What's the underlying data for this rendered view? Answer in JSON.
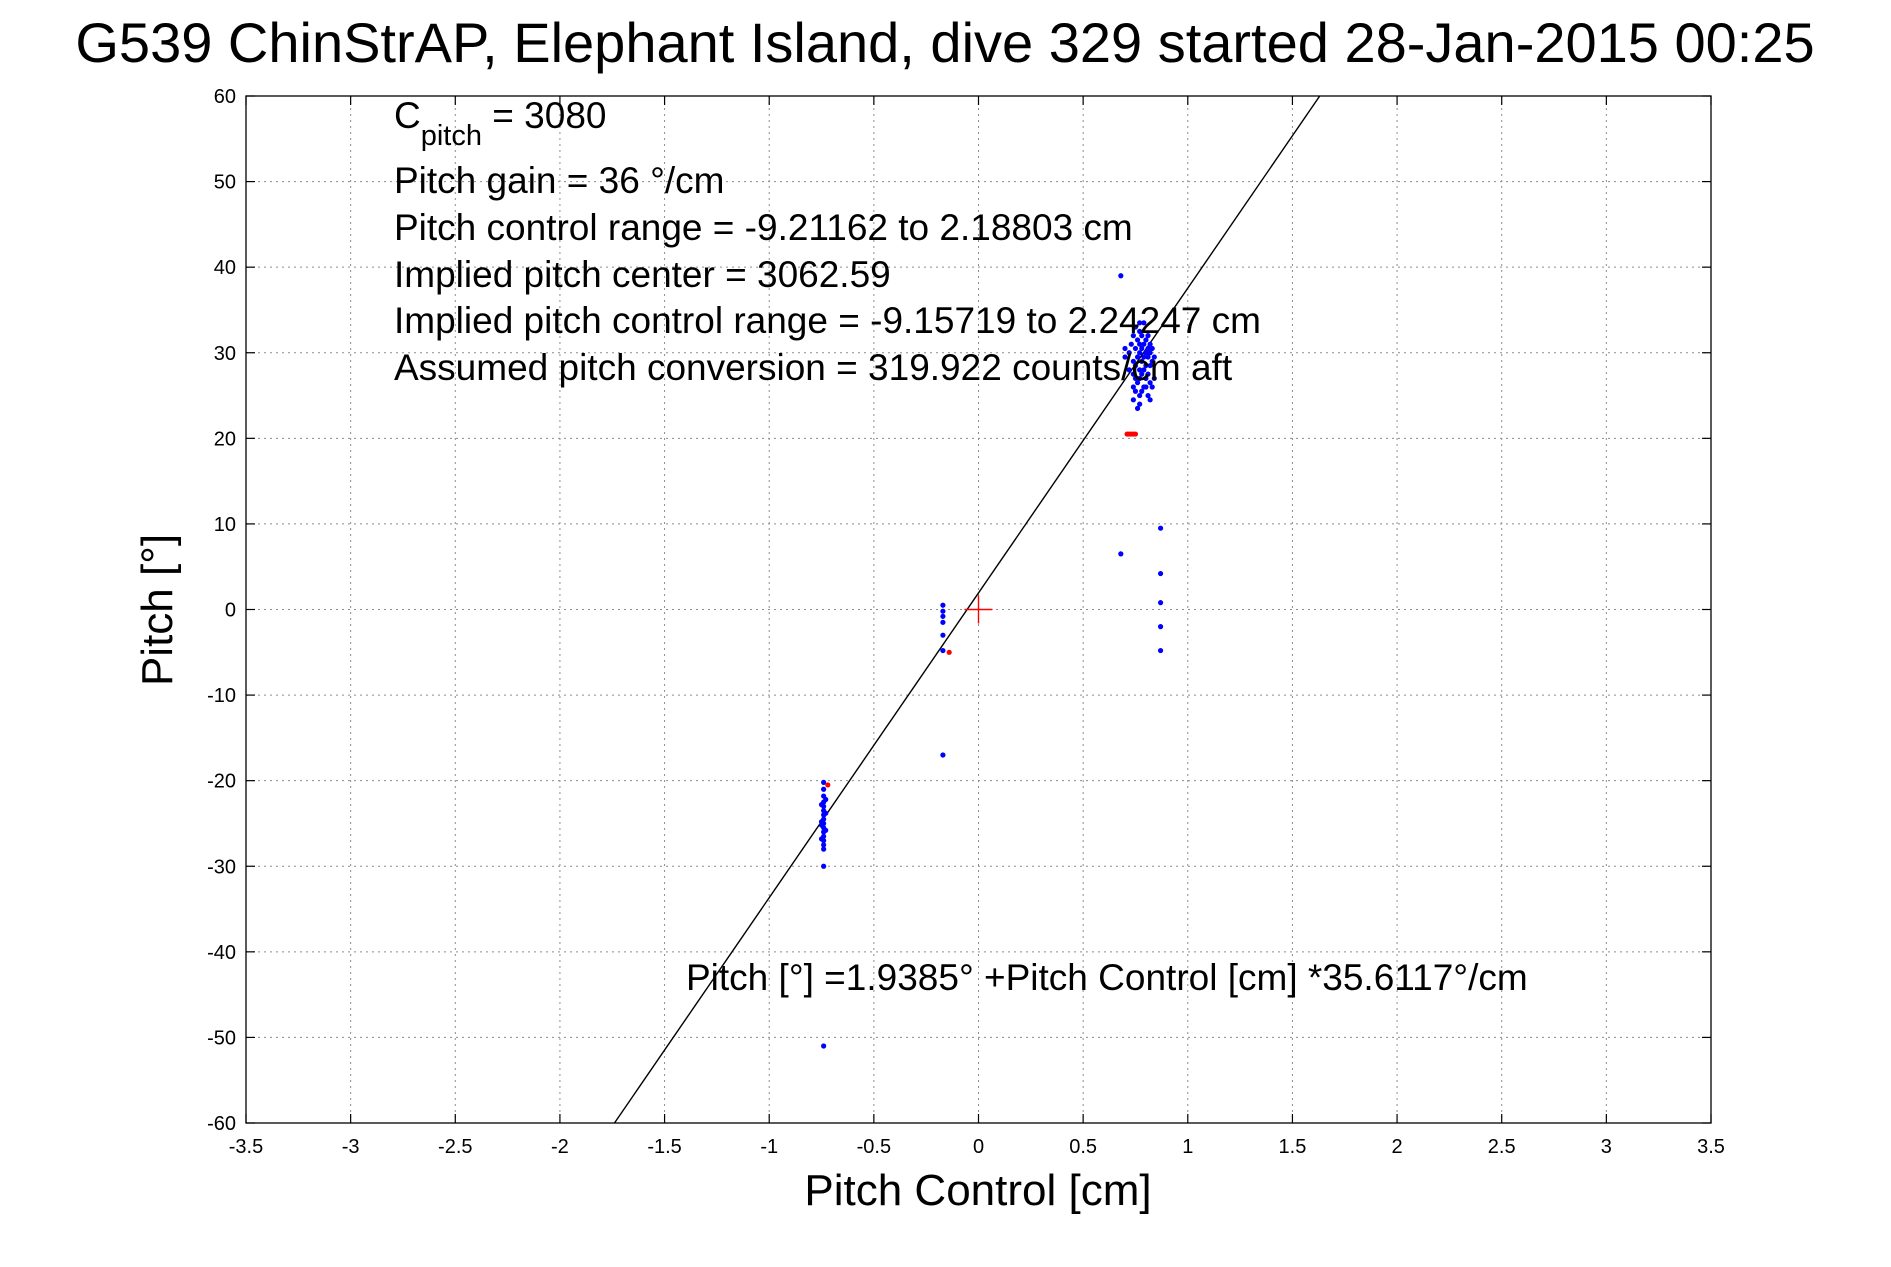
{
  "figure": {
    "title": "G539 ChinStrAP, Elephant Island, dive 329 started 28-Jan-2015 00:25"
  },
  "annotations": {
    "c_pitch_symbol": "C",
    "c_pitch_subscript": "pitch",
    "c_pitch_value": " = 3080",
    "line2": "Pitch gain = 36 °/cm",
    "line3": "Pitch control range = -9.21162 to 2.18803 cm",
    "line4": "Implied pitch center = 3062.59",
    "line5": "Implied pitch control range = -9.15719 to 2.24247 cm",
    "line6": "Assumed pitch conversion = 319.922 counts/cm aft",
    "fit_equation": "Pitch [°] =1.9385° +Pitch Control [cm] *35.6117°/cm"
  },
  "colors": {
    "primary_points": "#0000ff",
    "flagged_points": "#ff0000",
    "fit_line": "#000000",
    "center_marker": "#ff0000",
    "grid": "#8c8c8c"
  },
  "chart_data": {
    "type": "scatter",
    "title": "G539 ChinStrAP, Elephant Island, dive 329 started 28-Jan-2015 00:25",
    "xlabel": "Pitch Control [cm]",
    "ylabel": "Pitch [°]",
    "xlim": [
      -3.5,
      3.5
    ],
    "ylim": [
      -60,
      60
    ],
    "x_ticks": [
      -3.5,
      -3,
      -2.5,
      -2,
      -1.5,
      -1,
      -0.5,
      0,
      0.5,
      1,
      1.5,
      2,
      2.5,
      3,
      3.5
    ],
    "y_ticks": [
      -60,
      -50,
      -40,
      -30,
      -20,
      -10,
      0,
      10,
      20,
      30,
      40,
      50,
      60
    ],
    "x_tick_labels": [
      "-3.5",
      "-3",
      "-2.5",
      "-2",
      "-1.5",
      "-1",
      "-0.5",
      "0",
      "0.5",
      "1",
      "1.5",
      "2",
      "2.5",
      "3",
      "3.5"
    ],
    "y_tick_labels": [
      "-60",
      "-50",
      "-40",
      "-30",
      "-20",
      "-10",
      "0",
      "10",
      "20",
      "30",
      "40",
      "50",
      "60"
    ],
    "grid": true,
    "fit_line": {
      "intercept": 1.9385,
      "slope": 35.6117
    },
    "center_marker": {
      "x": 0,
      "y": 0
    },
    "series": [
      {
        "color": "blue",
        "points": [
          [
            -0.74,
            -20.2
          ],
          [
            -0.74,
            -21.0
          ],
          [
            -0.74,
            -21.8
          ],
          [
            -0.74,
            -22.5
          ],
          [
            -0.74,
            -23.0
          ],
          [
            -0.74,
            -23.5
          ],
          [
            -0.74,
            -24.0
          ],
          [
            -0.74,
            -24.5
          ],
          [
            -0.74,
            -25.0
          ],
          [
            -0.74,
            -25.5
          ],
          [
            -0.74,
            -26.0
          ],
          [
            -0.74,
            -26.5
          ],
          [
            -0.74,
            -27.0
          ],
          [
            -0.74,
            -27.5
          ],
          [
            -0.74,
            -28.0
          ],
          [
            -0.75,
            -22.8
          ],
          [
            -0.73,
            -23.8
          ],
          [
            -0.75,
            -24.8
          ],
          [
            -0.73,
            -25.8
          ],
          [
            -0.75,
            -26.8
          ],
          [
            -0.73,
            -22.2
          ],
          [
            -0.75,
            -25.2
          ],
          [
            -0.74,
            -30.0
          ],
          [
            -0.74,
            -51.0
          ],
          [
            -0.17,
            0.5
          ],
          [
            -0.17,
            -0.2
          ],
          [
            -0.17,
            -0.8
          ],
          [
            -0.17,
            -1.5
          ],
          [
            -0.17,
            -3.0
          ],
          [
            -0.17,
            -4.8
          ],
          [
            -0.17,
            -17.0
          ],
          [
            0.68,
            39.0
          ],
          [
            0.68,
            6.5
          ],
          [
            0.87,
            9.5
          ],
          [
            0.87,
            4.2
          ],
          [
            0.87,
            0.8
          ],
          [
            0.87,
            -2.0
          ],
          [
            0.87,
            -4.8
          ],
          [
            0.7,
            29.5
          ],
          [
            0.7,
            30.5
          ],
          [
            0.72,
            28.0
          ],
          [
            0.72,
            30.0
          ],
          [
            0.73,
            31.0
          ],
          [
            0.74,
            24.5
          ],
          [
            0.74,
            26.0
          ],
          [
            0.74,
            27.5
          ],
          [
            0.74,
            29.0
          ],
          [
            0.74,
            32.0
          ],
          [
            0.75,
            25.5
          ],
          [
            0.75,
            27.0
          ],
          [
            0.75,
            28.5
          ],
          [
            0.75,
            30.5
          ],
          [
            0.75,
            33.0
          ],
          [
            0.76,
            23.5
          ],
          [
            0.76,
            26.5
          ],
          [
            0.76,
            29.5
          ],
          [
            0.76,
            31.5
          ],
          [
            0.77,
            24.0
          ],
          [
            0.77,
            25.0
          ],
          [
            0.77,
            27.0
          ],
          [
            0.77,
            28.0
          ],
          [
            0.77,
            30.0
          ],
          [
            0.77,
            31.0
          ],
          [
            0.77,
            32.5
          ],
          [
            0.77,
            33.5
          ],
          [
            0.78,
            25.5
          ],
          [
            0.78,
            27.5
          ],
          [
            0.78,
            29.0
          ],
          [
            0.78,
            30.5
          ],
          [
            0.78,
            32.0
          ],
          [
            0.79,
            26.0
          ],
          [
            0.79,
            28.0
          ],
          [
            0.79,
            29.5
          ],
          [
            0.79,
            31.0
          ],
          [
            0.79,
            33.5
          ],
          [
            0.8,
            27.0
          ],
          [
            0.8,
            28.5
          ],
          [
            0.8,
            30.0
          ],
          [
            0.8,
            31.5
          ],
          [
            0.8,
            26.0
          ],
          [
            0.81,
            25.0
          ],
          [
            0.81,
            27.5
          ],
          [
            0.81,
            29.5
          ],
          [
            0.81,
            30.5
          ],
          [
            0.81,
            32.0
          ],
          [
            0.82,
            24.5
          ],
          [
            0.82,
            26.5
          ],
          [
            0.82,
            28.5
          ],
          [
            0.82,
            30.0
          ],
          [
            0.82,
            31.0
          ],
          [
            0.83,
            26.0
          ],
          [
            0.83,
            29.0
          ],
          [
            0.83,
            30.5
          ],
          [
            0.84,
            27.0
          ],
          [
            0.84,
            29.5
          ]
        ]
      },
      {
        "color": "red",
        "points": [
          [
            -0.72,
            -20.5
          ],
          [
            -0.14,
            -5.0
          ],
          [
            0.71,
            20.5
          ],
          [
            0.72,
            20.5
          ],
          [
            0.73,
            20.5
          ],
          [
            0.74,
            20.5
          ],
          [
            0.75,
            20.5
          ]
        ]
      }
    ]
  }
}
